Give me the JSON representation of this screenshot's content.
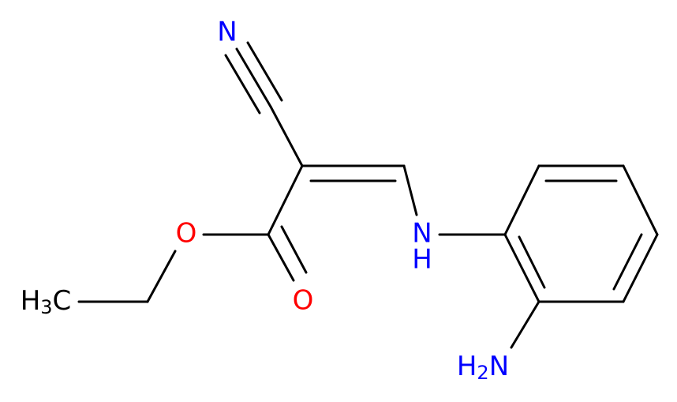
{
  "atoms": [
    {
      "parts": [
        "N"
      ]
    },
    {
      "parts": [
        "O"
      ]
    },
    {
      "parts": [
        "O"
      ]
    },
    {
      "parts": [
        "H",
        "3",
        "C"
      ]
    },
    {
      "parts": [
        "N",
        "H"
      ]
    },
    {
      "parts": [
        "H",
        "2",
        "N"
      ]
    }
  ]
}
